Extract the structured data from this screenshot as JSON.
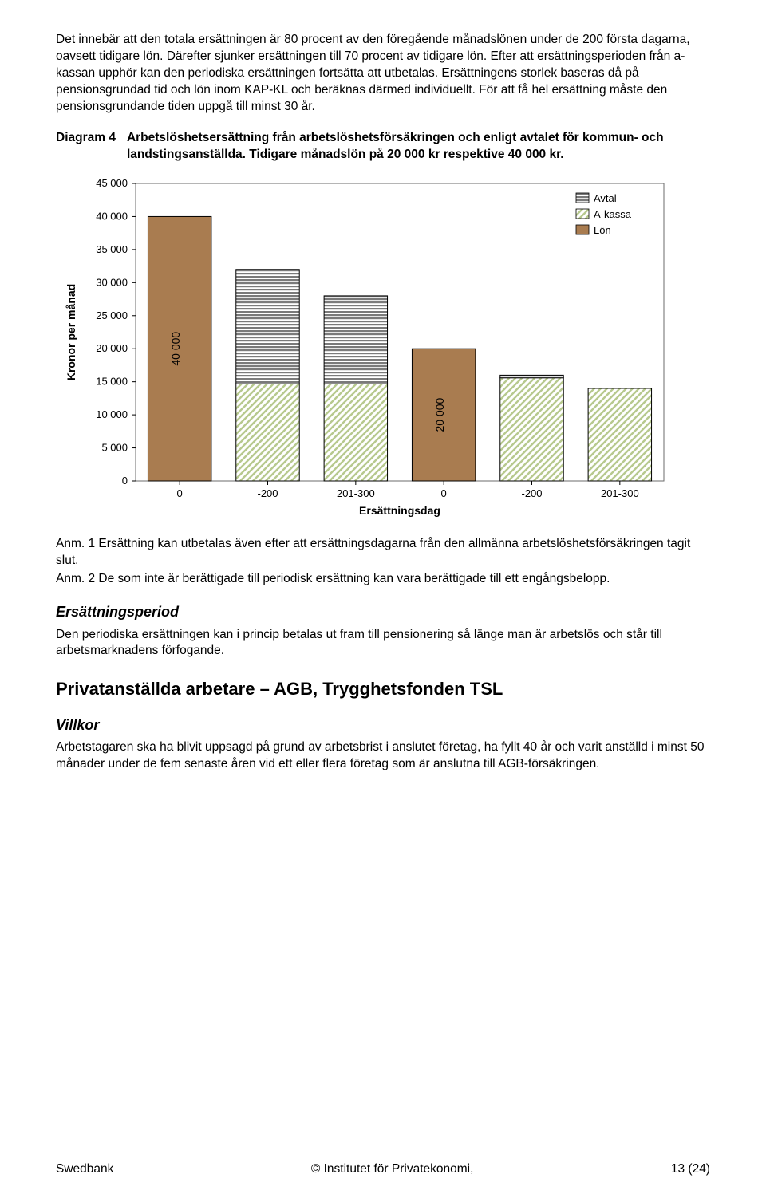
{
  "paragraph1": "Det innebär att den totala ersättningen är 80 procent av den föregående månadslönen under de 200 första dagarna, oavsett tidigare lön. Därefter sjunker ersättningen till 70 procent av tidigare lön. Efter att ersättningsperioden från a-kassan upphör kan den periodiska ersättningen fortsätta att utbetalas. Ersättningens storlek baseras då på pensionsgrundad tid och lön inom KAP-KL och beräknas därmed individuellt. För att få hel ersättning måste den pensionsgrundande tiden uppgå till minst 30 år.",
  "diagram4_label": "Diagram 4",
  "diagram4_title": "Arbetslöshetsersättning från arbetslöshetsförsäkringen och enligt avtalet för kommun- och landstingsanställda. Tidigare månadslön på 20 000 kr respektive 40 000 kr.",
  "note1": "Anm. 1 Ersättning kan utbetalas även efter att ersättningsdagarna från den allmänna arbetslöshetsförsäkringen tagit slut.",
  "note2": "Anm. 2 De som inte är berättigade till periodisk ersättning kan vara berättigade till ett engångsbelopp.",
  "h3a": "Ersättningsperiod",
  "pEP": "Den periodiska ersättningen kan i princip betalas ut fram till pensionering så länge man är arbetslös och står till arbetsmarknadens förfogande.",
  "h2a": "Privatanställda arbetare – AGB, Trygghetsfonden TSL",
  "h3b": "Villkor",
  "pV": "Arbetstagaren ska ha blivit uppsagd på grund av arbetsbrist i anslutet företag, ha fyllt 40 år och varit anställd i minst 50 månader under de fem senaste åren vid ett eller flera företag som är anslutna till AGB-försäkringen.",
  "footer_left": "Swedbank",
  "footer_mid": "© Institutet för Privatekonomi,",
  "footer_right": "13 (24)",
  "chart": {
    "type": "stacked-bar",
    "ylabel": "Kronor per månad",
    "xlabel": "Ersättningsdag",
    "ylim": [
      0,
      45000
    ],
    "ytick_step": 5000,
    "yticks": [
      "0",
      "5 000",
      "10 000",
      "15 000",
      "20 000",
      "25 000",
      "30 000",
      "35 000",
      "40 000",
      "45 000"
    ],
    "categories": [
      "0",
      "-200",
      "201-300",
      "0",
      "-200",
      "201-300"
    ],
    "series": [
      {
        "name": "Lön",
        "pattern": "solid",
        "color": "#a97c50",
        "values": [
          40000,
          0,
          0,
          20000,
          0,
          0
        ]
      },
      {
        "name": "A-kassa",
        "pattern": "diag",
        "color": "#b7c98e",
        "values": [
          0,
          14700,
          14700,
          0,
          15600,
          14000
        ]
      },
      {
        "name": "Avtal",
        "pattern": "hstripe",
        "color": "#888888",
        "values": [
          0,
          17300,
          13300,
          0,
          400,
          0
        ]
      }
    ],
    "bar_labels": [
      {
        "bar": 0,
        "text": "40 000"
      },
      {
        "bar": 3,
        "text": "20 000"
      }
    ],
    "legend": [
      "Avtal",
      "A-kassa",
      "Lön"
    ],
    "legend_colors": {
      "Avtal": "#888888",
      "A-kassa": "#b7c98e",
      "Lön": "#a97c50"
    },
    "legend_patterns": {
      "Avtal": "hstripe",
      "A-kassa": "diag",
      "Lön": "solid"
    },
    "plot_bg": "#ffffff",
    "axis_color": "#000000",
    "tick_fontsize": 13,
    "label_fontsize": 14,
    "legend_fontsize": 13,
    "bar_border": "#000000",
    "bar_width_ratio": 0.72
  }
}
